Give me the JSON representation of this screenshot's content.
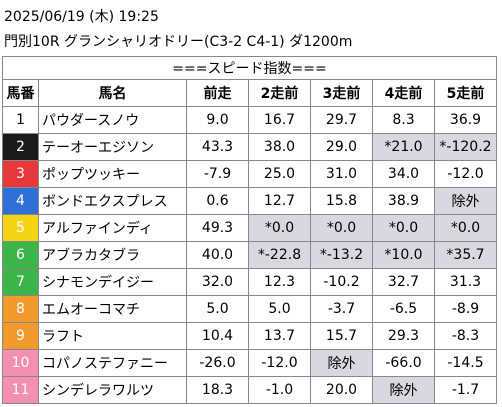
{
  "header": {
    "date": "2025/06/19 (木) 19:25",
    "race": "門別10R グランシャリオドリー(C3-2 C4-1) ダ1200m"
  },
  "table": {
    "banner": "===スピード指数===",
    "columns": [
      "馬番",
      "馬名",
      "前走",
      "2走前",
      "3走前",
      "4走前",
      "5走前"
    ],
    "rows": [
      {
        "number": "1",
        "name": "パウダースノウ",
        "values": [
          "9.0",
          "16.7",
          "29.7",
          "8.3",
          "36.9"
        ],
        "shaded": [
          false,
          false,
          false,
          false,
          false
        ],
        "frame_color": "#ffffff",
        "number_color": "#000000"
      },
      {
        "number": "2",
        "name": "テーオーエジソン",
        "values": [
          "43.3",
          "38.0",
          "29.0",
          "*21.0",
          "*-120.2"
        ],
        "shaded": [
          false,
          false,
          false,
          true,
          true
        ],
        "frame_color": "#1a1a1a",
        "number_color": "#ffffff"
      },
      {
        "number": "3",
        "name": "ポップツッキー",
        "values": [
          "-7.9",
          "25.0",
          "31.0",
          "34.0",
          "-12.0"
        ],
        "shaded": [
          false,
          false,
          false,
          false,
          false
        ],
        "frame_color": "#e8383d",
        "number_color": "#ffffff"
      },
      {
        "number": "4",
        "name": "ボンドエクスプレス",
        "values": [
          "0.6",
          "12.7",
          "15.8",
          "38.9",
          "除外"
        ],
        "shaded": [
          false,
          false,
          false,
          false,
          true
        ],
        "frame_color": "#2f6fd6",
        "number_color": "#ffffff"
      },
      {
        "number": "5",
        "name": "アルファインディ",
        "values": [
          "49.3",
          "*0.0",
          "*0.0",
          "*0.0",
          "*0.0"
        ],
        "shaded": [
          false,
          true,
          true,
          true,
          true
        ],
        "frame_color": "#f5d416",
        "number_color": "#ffffff"
      },
      {
        "number": "6",
        "name": "アブラカタブラ",
        "values": [
          "40.0",
          "*-22.8",
          "*-13.2",
          "*10.0",
          "*35.7"
        ],
        "shaded": [
          false,
          true,
          true,
          true,
          true
        ],
        "frame_color": "#3bb54a",
        "number_color": "#ffffff"
      },
      {
        "number": "7",
        "name": "シナモンデイジー",
        "values": [
          "32.0",
          "12.3",
          "-10.2",
          "32.7",
          "31.3"
        ],
        "shaded": [
          false,
          false,
          false,
          false,
          false
        ],
        "frame_color": "#3bb54a",
        "number_color": "#ffffff"
      },
      {
        "number": "8",
        "name": "エムオーコマチ",
        "values": [
          "5.0",
          "5.0",
          "-3.7",
          "-6.5",
          "-8.9"
        ],
        "shaded": [
          false,
          false,
          false,
          false,
          false
        ],
        "frame_color": "#f39a2e",
        "number_color": "#ffffff"
      },
      {
        "number": "9",
        "name": "ラフト",
        "values": [
          "10.4",
          "13.7",
          "15.7",
          "29.3",
          "-8.3"
        ],
        "shaded": [
          false,
          false,
          false,
          false,
          false
        ],
        "frame_color": "#f39a2e",
        "number_color": "#ffffff"
      },
      {
        "number": "10",
        "name": "コパノステファニー",
        "values": [
          "-26.0",
          "-12.0",
          "除外",
          "-66.0",
          "-14.5"
        ],
        "shaded": [
          false,
          false,
          true,
          false,
          false
        ],
        "frame_color": "#f48fb1",
        "number_color": "#ffffff"
      },
      {
        "number": "11",
        "name": "シンデレラワルツ",
        "values": [
          "18.3",
          "-1.0",
          "20.0",
          "除外",
          "-1.7"
        ],
        "shaded": [
          false,
          false,
          false,
          true,
          false
        ],
        "frame_color": "#f48fb1",
        "number_color": "#ffffff"
      }
    ]
  }
}
